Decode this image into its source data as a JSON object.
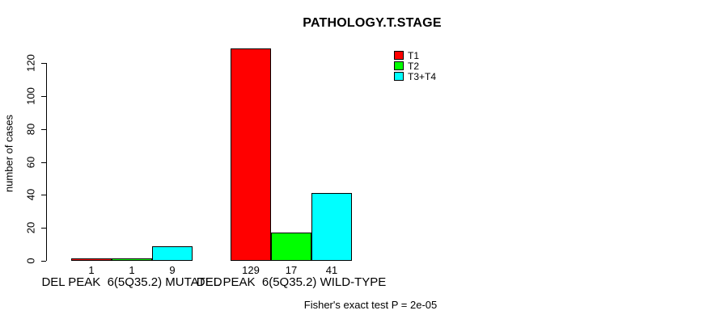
{
  "title": "PATHOLOGY.T.STAGE",
  "y_axis": {
    "label": "number of cases",
    "ticks": [
      0,
      20,
      40,
      60,
      80,
      100,
      120
    ]
  },
  "footnote": "Fisher's exact test P = 2e-05",
  "legend": {
    "entries": [
      {
        "label": "T1",
        "color": "#ff0000"
      },
      {
        "label": "T2",
        "color": "#00ff00"
      },
      {
        "label": "T3+T4",
        "color": "#00ffff"
      }
    ]
  },
  "chart_data": {
    "type": "bar",
    "title": "PATHOLOGY.T.STAGE",
    "xlabel": "",
    "ylabel": "number of cases",
    "ylim": [
      0,
      130
    ],
    "grid": false,
    "legend_position": "top-right",
    "categories": [
      "DEL PEAK  6(5Q35.2) MUTATED",
      "DEL PEAK  6(5Q35.2) WILD-TYPE"
    ],
    "series": [
      {
        "name": "T1",
        "color": "#ff0000",
        "values": [
          1,
          129
        ]
      },
      {
        "name": "T2",
        "color": "#00ff00",
        "values": [
          1,
          17
        ]
      },
      {
        "name": "T3+T4",
        "color": "#00ffff",
        "values": [
          9,
          41
        ]
      }
    ],
    "bar_value_labels": [
      [
        1,
        1,
        9
      ],
      [
        129,
        17,
        41
      ]
    ],
    "annotations": [
      "Fisher's exact test P = 2e-05"
    ]
  }
}
